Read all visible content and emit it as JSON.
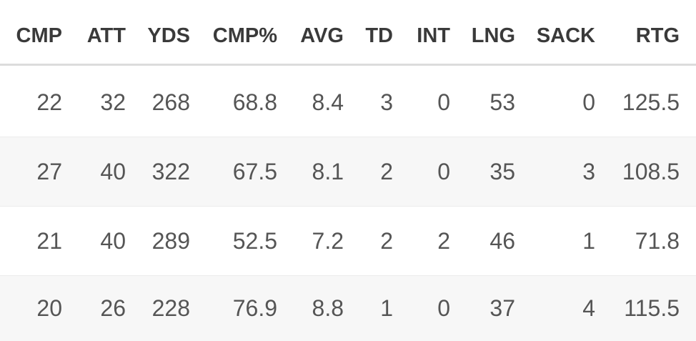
{
  "table": {
    "columns": [
      "CMP",
      "ATT",
      "YDS",
      "CMP%",
      "AVG",
      "TD",
      "INT",
      "LNG",
      "SACK",
      "RTG"
    ],
    "rows": [
      [
        "22",
        "32",
        "268",
        "68.8",
        "8.4",
        "3",
        "0",
        "53",
        "0",
        "125.5"
      ],
      [
        "27",
        "40",
        "322",
        "67.5",
        "8.1",
        "2",
        "0",
        "35",
        "3",
        "108.5"
      ],
      [
        "21",
        "40",
        "289",
        "52.5",
        "7.2",
        "2",
        "2",
        "46",
        "1",
        "71.8"
      ],
      [
        "20",
        "26",
        "228",
        "76.9",
        "8.8",
        "1",
        "0",
        "37",
        "4",
        "115.5"
      ]
    ]
  }
}
